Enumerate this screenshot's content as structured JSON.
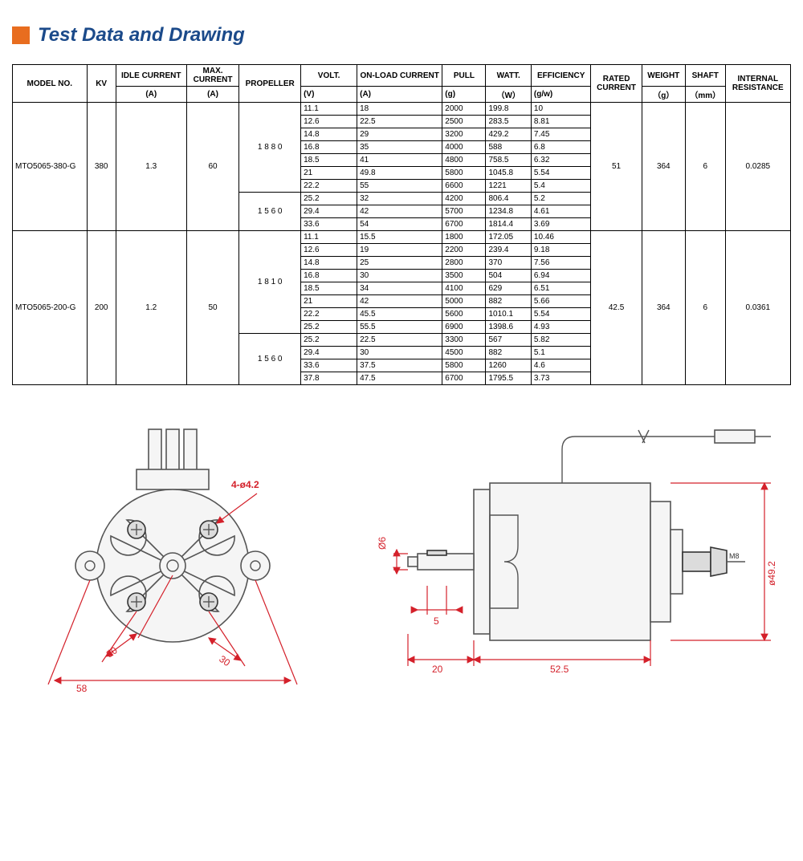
{
  "title": "Test Data and Drawing",
  "colors": {
    "marker": "#e86d1f",
    "title_text": "#1b4a8a",
    "dim": "#d4202a",
    "mech_stroke": "#555555",
    "mech_fill": "#f5f5f5",
    "border": "#000000",
    "background": "#ffffff"
  },
  "font": {
    "title_size": 24,
    "table_size": 10,
    "dim_size": 12
  },
  "table": {
    "headers": {
      "model": "MODEL NO.",
      "kv": "KV",
      "idle": "IDLE CURRENT",
      "max": "MAX. CURRENT",
      "propeller": "PROPELLER",
      "volt": "VOLT.",
      "onload": "ON-LOAD CURRENT",
      "pull": "PULL",
      "watt": "WATT.",
      "efficiency": "EFFICIENCY",
      "rated": "RATED CURRENT",
      "weight": "WEIGHT",
      "shaft": "SHAFT",
      "resistance": "INTERNAL RESISTANCE"
    },
    "units": {
      "idle": "(A)",
      "max": "(A)",
      "volt": "(V)",
      "onload": "(A)",
      "pull": "(g)",
      "watt": "（W）",
      "efficiency": "(g/w)",
      "weight": "（g）",
      "shaft": "（mm）"
    },
    "models": [
      {
        "model": "MTO5065-380-G",
        "kv": "380",
        "idle": "1.3",
        "max": "60",
        "rated": "51",
        "weight": "364",
        "shaft": "6",
        "resistance": "0.0285",
        "prop_groups": [
          {
            "propeller": "1 8 8 0",
            "rows": [
              {
                "volt": "11.1",
                "onload": "18",
                "pull": "2000",
                "watt": "199.8",
                "eff": "10"
              },
              {
                "volt": "12.6",
                "onload": "22.5",
                "pull": "2500",
                "watt": "283.5",
                "eff": "8.81"
              },
              {
                "volt": "14.8",
                "onload": "29",
                "pull": "3200",
                "watt": "429.2",
                "eff": "7.45"
              },
              {
                "volt": "16.8",
                "onload": "35",
                "pull": "4000",
                "watt": "588",
                "eff": "6.8"
              },
              {
                "volt": "18.5",
                "onload": "41",
                "pull": "4800",
                "watt": "758.5",
                "eff": "6.32"
              },
              {
                "volt": "21",
                "onload": "49.8",
                "pull": "5800",
                "watt": "1045.8",
                "eff": "5.54"
              },
              {
                "volt": "22.2",
                "onload": "55",
                "pull": "6600",
                "watt": "1221",
                "eff": "5.4"
              }
            ]
          },
          {
            "propeller": "1 5 6 0",
            "rows": [
              {
                "volt": "25.2",
                "onload": "32",
                "pull": "4200",
                "watt": "806.4",
                "eff": "5.2"
              },
              {
                "volt": "29.4",
                "onload": "42",
                "pull": "5700",
                "watt": "1234.8",
                "eff": "4.61"
              },
              {
                "volt": "33.6",
                "onload": "54",
                "pull": "6700",
                "watt": "1814.4",
                "eff": "3.69"
              }
            ]
          }
        ]
      },
      {
        "model": "MTO5065-200-G",
        "kv": "200",
        "idle": "1.2",
        "max": "50",
        "rated": "42.5",
        "weight": "364",
        "shaft": "6",
        "resistance": "0.0361",
        "prop_groups": [
          {
            "propeller": "1 8 1 0",
            "rows": [
              {
                "volt": "11.1",
                "onload": "15.5",
                "pull": "1800",
                "watt": "172.05",
                "eff": "10.46"
              },
              {
                "volt": "12.6",
                "onload": "19",
                "pull": "2200",
                "watt": "239.4",
                "eff": "9.18"
              },
              {
                "volt": "14.8",
                "onload": "25",
                "pull": "2800",
                "watt": "370",
                "eff": "7.56"
              },
              {
                "volt": "16.8",
                "onload": "30",
                "pull": "3500",
                "watt": "504",
                "eff": "6.94"
              },
              {
                "volt": "18.5",
                "onload": "34",
                "pull": "4100",
                "watt": "629",
                "eff": "6.51"
              },
              {
                "volt": "21",
                "onload": "42",
                "pull": "5000",
                "watt": "882",
                "eff": "5.66"
              },
              {
                "volt": "22.2",
                "onload": "45.5",
                "pull": "5600",
                "watt": "1010.1",
                "eff": "5.54"
              },
              {
                "volt": "25.2",
                "onload": "55.5",
                "pull": "6900",
                "watt": "1398.6",
                "eff": "4.93"
              }
            ]
          },
          {
            "propeller": "1 5 6 0",
            "rows": [
              {
                "volt": "25.2",
                "onload": "22.5",
                "pull": "3300",
                "watt": "567",
                "eff": "5.82"
              },
              {
                "volt": "29.4",
                "onload": "30",
                "pull": "4500",
                "watt": "882",
                "eff": "5.1"
              },
              {
                "volt": "33.6",
                "onload": "37.5",
                "pull": "5800",
                "watt": "1260",
                "eff": "4.6"
              },
              {
                "volt": "37.8",
                "onload": "47.5",
                "pull": "6700",
                "watt": "1795.5",
                "eff": "3.73"
              }
            ]
          }
        ]
      }
    ]
  },
  "drawing": {
    "front": {
      "dims": {
        "hole": "4-ø4.2",
        "span1": "30",
        "span2": "30",
        "overall": "58"
      }
    },
    "side": {
      "dims": {
        "shaft_d": "Ø6",
        "keyway": "5",
        "shaft_len": "20",
        "body_len": "52.5",
        "body_d": "ø49.2",
        "thread": "M8"
      }
    }
  }
}
